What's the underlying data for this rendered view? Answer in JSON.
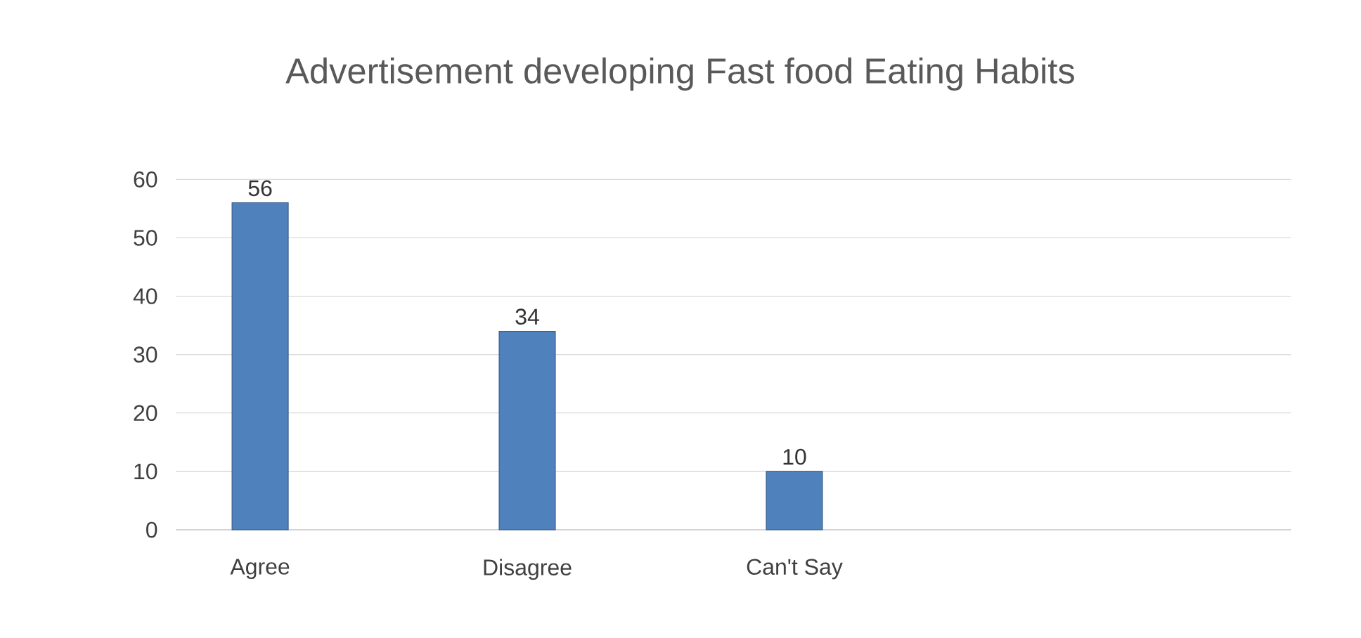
{
  "chart_data": {
    "type": "bar",
    "title": "Advertisement developing Fast food Eating Habits",
    "categories": [
      "Agree",
      "Disagree",
      "Can't Say"
    ],
    "values": [
      56,
      34,
      10
    ],
    "color": "#4f81bd",
    "ylim": [
      0,
      60
    ],
    "yticks": [
      0,
      10,
      20,
      30,
      40,
      50,
      60
    ],
    "grid": "y",
    "data_labels": true
  }
}
